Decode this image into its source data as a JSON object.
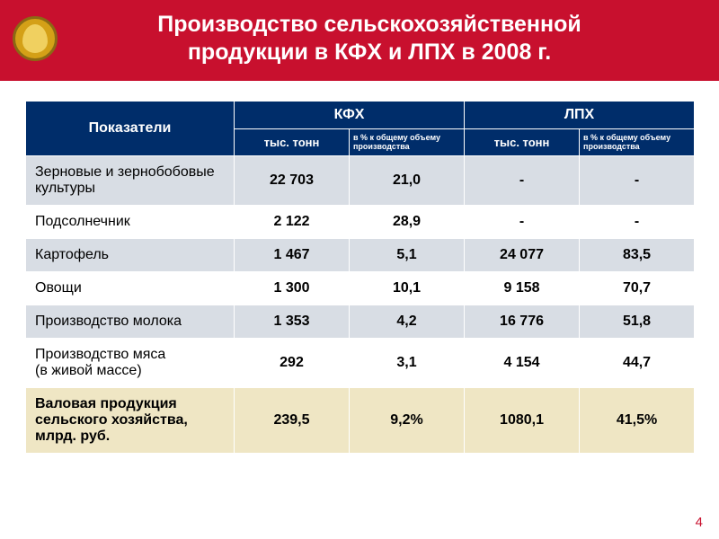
{
  "header": {
    "title_l1": "Производство сельскохозяйственной",
    "title_l2": "продукции в КФХ и ЛПХ в 2008 г."
  },
  "colors": {
    "header_bg": "#c8102e",
    "th_bg": "#002d6a",
    "row_odd": "#d8dde4",
    "row_even": "#ffffff",
    "row_total": "#efe6c4"
  },
  "table": {
    "header": {
      "indicators": "Показатели",
      "group1": "КФХ",
      "group2": "ЛПХ",
      "unit": "тыс. тонн",
      "pct": "в % к общему объему производства"
    },
    "rows": [
      {
        "ind": "Зерновые и зернобобовые культуры",
        "a": "22 703",
        "b": "21,0",
        "c": "-",
        "d": "-",
        "stripe": "odd"
      },
      {
        "ind": "Подсолнечник",
        "a": "2 122",
        "b": "28,9",
        "c": "-",
        "d": "-",
        "stripe": "even"
      },
      {
        "ind": "Картофель",
        "a": "1 467",
        "b": "5,1",
        "c": "24 077",
        "d": "83,5",
        "stripe": "odd"
      },
      {
        "ind": "Овощи",
        "a": "1 300",
        "b": "10,1",
        "c": "9 158",
        "d": "70,7",
        "stripe": "even"
      },
      {
        "ind": "Производство молока",
        "a": "1 353",
        "b": "4,2",
        "c": "16 776",
        "d": "51,8",
        "stripe": "odd"
      },
      {
        "ind": "Производство мяса\n(в живой массе)",
        "a": "292",
        "b": "3,1",
        "c": "4 154",
        "d": "44,7",
        "stripe": "even"
      },
      {
        "ind": "Валовая продукция сельского хозяйства, млрд. руб.",
        "a": "239,5",
        "b": "9,2%",
        "c": "1080,1",
        "d": "41,5%",
        "stripe": "total"
      }
    ]
  },
  "page_number": "4"
}
